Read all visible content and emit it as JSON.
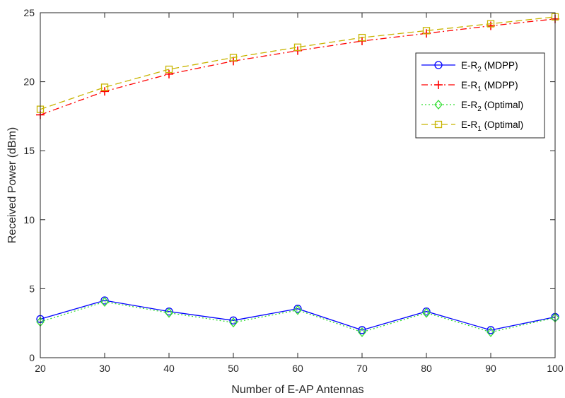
{
  "chart_data": {
    "type": "line",
    "xlabel": "Number of E-AP Antennas",
    "ylabel": "Received Power (dBm)",
    "xlim": [
      20,
      100
    ],
    "ylim": [
      0,
      25
    ],
    "x": [
      20,
      30,
      40,
      50,
      60,
      70,
      80,
      90,
      100
    ],
    "xticks": [
      "20",
      "30",
      "40",
      "50",
      "60",
      "70",
      "80",
      "90",
      "100"
    ],
    "yticks": [
      "0",
      "5",
      "10",
      "15",
      "20",
      "25"
    ],
    "grid": false,
    "legend_position": "top-right",
    "series": [
      {
        "name": "E-R2 (MDPP)",
        "label": {
          "base": "E-R",
          "sub": "2",
          "suffix": " (MDPP)"
        },
        "color": "#0000ff",
        "line": "solid",
        "marker": "circle",
        "values": [
          2.8,
          4.15,
          3.35,
          2.7,
          3.55,
          2.0,
          3.35,
          2.0,
          2.95
        ]
      },
      {
        "name": "E-R1 (MDPP)",
        "label": {
          "base": "E-R",
          "sub": "1",
          "suffix": " (MDPP)"
        },
        "color": "#ff0000",
        "line": "dashdot",
        "marker": "plus",
        "values": [
          17.6,
          19.3,
          20.55,
          21.5,
          22.25,
          22.95,
          23.5,
          24.05,
          24.55
        ]
      },
      {
        "name": "E-R2 (Optimal)",
        "label": {
          "base": "E-R",
          "sub": "2",
          "suffix": " (Optimal)"
        },
        "color": "#33dd33",
        "line": "dotted",
        "marker": "diamond",
        "values": [
          2.6,
          4.05,
          3.25,
          2.55,
          3.45,
          1.85,
          3.25,
          1.85,
          2.9
        ]
      },
      {
        "name": "E-R1 (Optimal)",
        "label": {
          "base": "E-R",
          "sub": "1",
          "suffix": " (Optimal)"
        },
        "color": "#c8b400",
        "line": "dashed",
        "marker": "square",
        "values": [
          18.0,
          19.6,
          20.9,
          21.75,
          22.5,
          23.2,
          23.7,
          24.2,
          24.7
        ]
      }
    ]
  }
}
